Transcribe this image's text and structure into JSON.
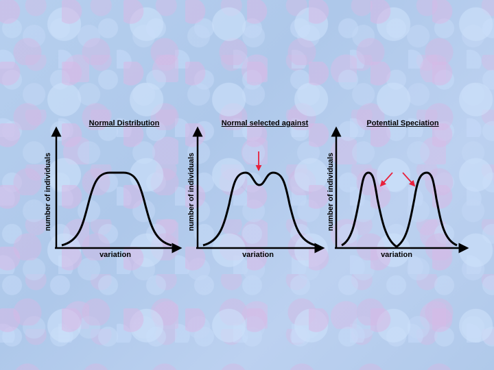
{
  "panels": [
    {
      "title": "Normal Distribution",
      "xlabel": "variation",
      "ylabel": "number of individuals"
    },
    {
      "title": "Normal selected against",
      "xlabel": "variation",
      "ylabel": "number of individuals"
    },
    {
      "title": "Potential Speciation",
      "xlabel": "variation",
      "ylabel": "number of individuals"
    }
  ],
  "colors": {
    "curve": "#000000",
    "axis": "#000000",
    "arrow": "#e8203c"
  }
}
